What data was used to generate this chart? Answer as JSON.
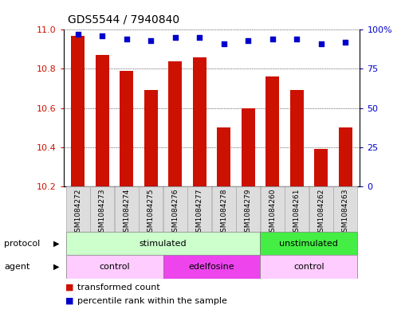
{
  "title": "GDS5544 / 7940840",
  "samples": [
    "GSM1084272",
    "GSM1084273",
    "GSM1084274",
    "GSM1084275",
    "GSM1084276",
    "GSM1084277",
    "GSM1084278",
    "GSM1084279",
    "GSM1084260",
    "GSM1084261",
    "GSM1084262",
    "GSM1084263"
  ],
  "bar_values": [
    10.97,
    10.87,
    10.79,
    10.69,
    10.84,
    10.86,
    10.5,
    10.6,
    10.76,
    10.69,
    10.39,
    10.5
  ],
  "percentile_values": [
    97,
    96,
    94,
    93,
    95,
    95,
    91,
    93,
    94,
    94,
    91,
    92
  ],
  "ylim_left": [
    10.2,
    11.0
  ],
  "ylim_right": [
    0,
    100
  ],
  "bar_color": "#cc1100",
  "dot_color": "#0000cc",
  "yticks_left": [
    10.2,
    10.4,
    10.6,
    10.8,
    11.0
  ],
  "yticks_right": [
    0,
    25,
    50,
    75,
    100
  ],
  "protocol_groups": [
    {
      "label": "stimulated",
      "start": 0,
      "end": 8,
      "color": "#ccffcc"
    },
    {
      "label": "unstimulated",
      "start": 8,
      "end": 12,
      "color": "#44ee44"
    }
  ],
  "agent_groups": [
    {
      "label": "control",
      "start": 0,
      "end": 4,
      "color": "#ffccff"
    },
    {
      "label": "edelfosine",
      "start": 4,
      "end": 8,
      "color": "#ee44ee"
    },
    {
      "label": "control",
      "start": 8,
      "end": 12,
      "color": "#ffccff"
    }
  ],
  "legend_items": [
    {
      "label": "transformed count",
      "color": "#cc1100"
    },
    {
      "label": "percentile rank within the sample",
      "color": "#0000cc"
    }
  ],
  "background_color": "#ffffff",
  "grid_color": "#555555",
  "title_fontsize": 10,
  "tick_fontsize": 8,
  "row_label_fontsize": 8,
  "legend_fontsize": 8,
  "sample_fontsize": 6.5,
  "group_fontsize": 8
}
